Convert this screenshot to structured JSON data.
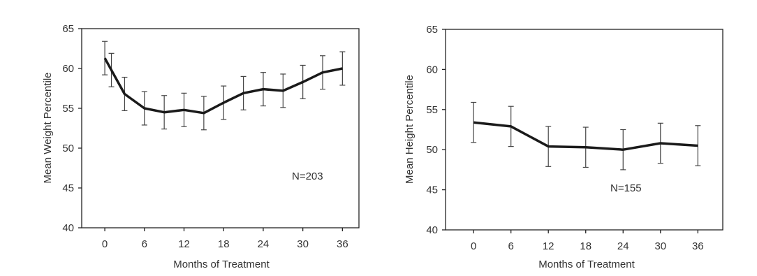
{
  "chart_data": [
    {
      "type": "line",
      "title": "",
      "xlabel": "Months of Treatment",
      "ylabel": "Mean Weight Percentile",
      "ylim": [
        40,
        65
      ],
      "xlim": [
        -3.5,
        38.5
      ],
      "xticks": [
        0,
        6,
        12,
        18,
        24,
        30,
        36
      ],
      "yticks": [
        40,
        45,
        50,
        55,
        60,
        65
      ],
      "annotation": "N=203",
      "grid": false,
      "series": [
        {
          "x": [
            0,
            1,
            3,
            6,
            9,
            12,
            15,
            18,
            21,
            24,
            27,
            30,
            33,
            36
          ],
          "y": [
            61.3,
            59.8,
            56.8,
            55.0,
            54.5,
            54.8,
            54.4,
            55.7,
            56.9,
            57.4,
            57.2,
            58.3,
            59.5,
            60.0
          ],
          "err": [
            2.1,
            2.1,
            2.1,
            2.1,
            2.1,
            2.1,
            2.1,
            2.1,
            2.1,
            2.1,
            2.1,
            2.1,
            2.1,
            2.1
          ]
        }
      ]
    },
    {
      "type": "line",
      "title": "",
      "xlabel": "Months of Treatment",
      "ylabel": "Mean Height Percentile",
      "ylim": [
        40,
        65
      ],
      "xlim": [
        -4.5,
        40
      ],
      "xticks": [
        0,
        6,
        12,
        18,
        24,
        30,
        36
      ],
      "yticks": [
        40,
        45,
        50,
        55,
        60,
        65
      ],
      "annotation": "N=155",
      "grid": false,
      "series": [
        {
          "x": [
            0,
            6,
            12,
            18,
            24,
            30,
            36
          ],
          "y": [
            53.4,
            52.9,
            50.4,
            50.3,
            50.0,
            50.8,
            50.5
          ],
          "err": [
            2.5,
            2.5,
            2.5,
            2.5,
            2.5,
            2.5,
            2.5
          ]
        }
      ]
    }
  ]
}
